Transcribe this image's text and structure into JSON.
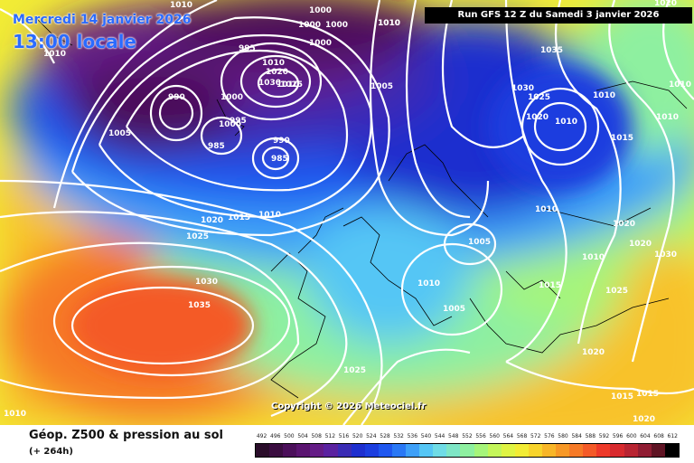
{
  "header": {
    "date": "Mercredi 14 janvier 2026",
    "time": "13:00 locale",
    "run": "Run GFS 12 Z du Samedi 3 janvier 2026"
  },
  "copyright": "Copyright © 2026 Meteociel.fr",
  "footer": {
    "title": "Géop. Z500 & pression au sol",
    "subtitle": "(+ 264h)"
  },
  "scale": {
    "labels": [
      "492",
      "496",
      "500",
      "504",
      "508",
      "512",
      "516",
      "520",
      "524",
      "528",
      "532",
      "536",
      "540",
      "544",
      "548",
      "552",
      "556",
      "560",
      "564",
      "568",
      "572",
      "576",
      "580",
      "584",
      "588",
      "592",
      "596",
      "600",
      "604",
      "608",
      "612"
    ],
    "colors": [
      "#2a0d2a",
      "#3a0d40",
      "#4b0f5a",
      "#5a1470",
      "#641c86",
      "#5a22a0",
      "#3a2cb5",
      "#1e2fcf",
      "#1c3edf",
      "#1f57ef",
      "#2a78f5",
      "#3ea0f8",
      "#55c6f5",
      "#6fdce6",
      "#7ee6c6",
      "#8ef0a0",
      "#a6f57a",
      "#c4f65a",
      "#dff443",
      "#f2ec35",
      "#f8d42c",
      "#f8b628",
      "#f79826",
      "#f67a27",
      "#f45a28",
      "#ee3a2a",
      "#d82a2e",
      "#b82432",
      "#901d33",
      "#5f1424",
      "#000000"
    ]
  },
  "pressure_labels": [
    "1010",
    "1000",
    "1000",
    "1010",
    "1000",
    "1000",
    "995",
    "1010",
    "1020",
    "1010",
    "1030",
    "1025",
    "990",
    "1000",
    "1005",
    "1000",
    "995",
    "990",
    "985",
    "985",
    "1005",
    "1035",
    "1030",
    "1025",
    "1010",
    "1010",
    "1020",
    "1010",
    "1015",
    "1030",
    "1025",
    "1020",
    "1010",
    "1015",
    "1010",
    "1005",
    "1010",
    "1020",
    "1010",
    "1020",
    "1025",
    "1035",
    "1030",
    "1015",
    "1020",
    "1010",
    "1005",
    "1015",
    "1025",
    "1020",
    "1015",
    "1020",
    "1010",
    "1010",
    "1010"
  ],
  "pressure_label_notes": "values read from isobars on the map"
}
